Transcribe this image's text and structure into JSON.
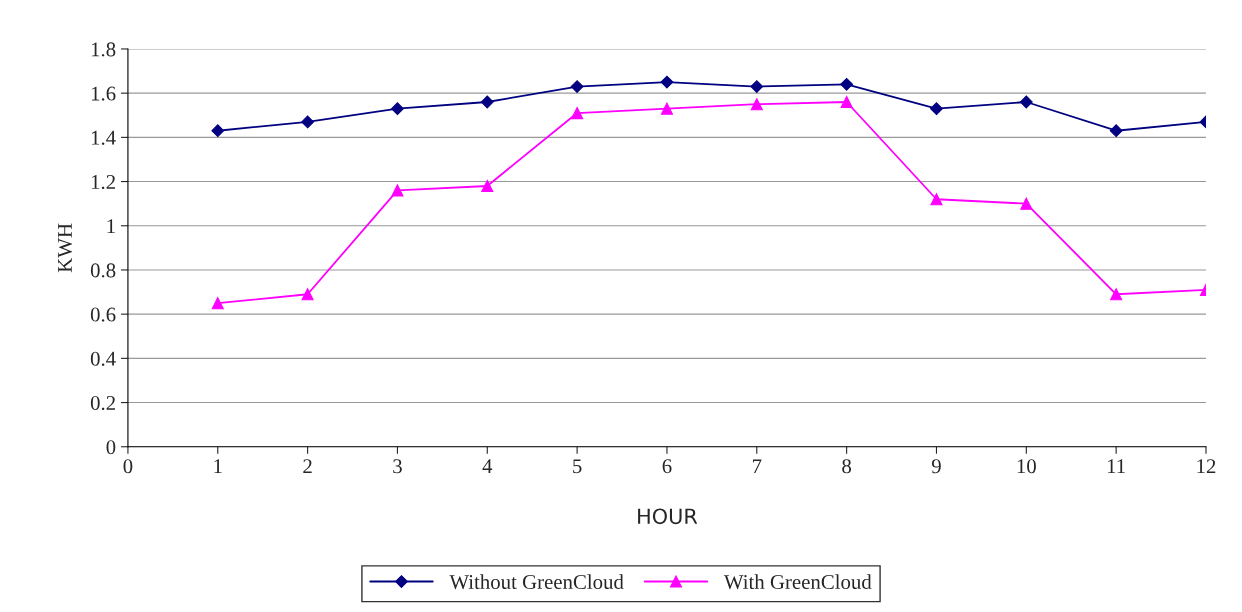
{
  "chart_data": {
    "type": "line",
    "xlabel": "HOUR",
    "ylabel": "KWH",
    "x": [
      1,
      2,
      3,
      4,
      5,
      6,
      7,
      8,
      9,
      10,
      11,
      12
    ],
    "series": [
      {
        "name": "Without GreenCloud",
        "color": "#000080",
        "marker": "diamond",
        "values": [
          1.43,
          1.47,
          1.53,
          1.56,
          1.63,
          1.65,
          1.63,
          1.64,
          1.53,
          1.56,
          1.43,
          1.47
        ]
      },
      {
        "name": "With GreenCloud",
        "color": "#ff00ff",
        "marker": "triangle",
        "values": [
          0.65,
          0.69,
          1.16,
          1.18,
          1.51,
          1.53,
          1.55,
          1.56,
          1.12,
          1.1,
          0.69,
          0.71
        ]
      }
    ],
    "xlim": [
      0,
      12
    ],
    "xticks": [
      0,
      1,
      2,
      3,
      4,
      5,
      6,
      7,
      8,
      9,
      10,
      11,
      12
    ],
    "ylim": [
      0,
      1.8
    ],
    "yticks": [
      0,
      0.2,
      0.4,
      0.6,
      0.8,
      1,
      1.2,
      1.4,
      1.6,
      1.8
    ],
    "grid": "y",
    "legend": "bottom",
    "line_style": "solid"
  }
}
